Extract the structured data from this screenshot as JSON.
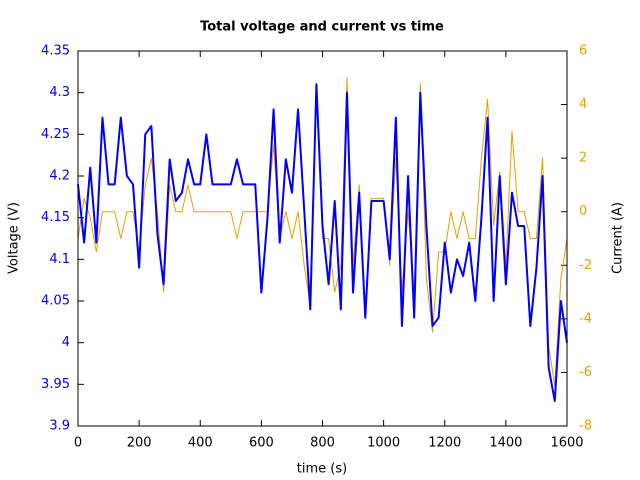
{
  "chart_data": {
    "type": "line",
    "title": "Total voltage and current vs time",
    "xlabel": "time (s)",
    "ylabel": "Voltage (V)",
    "y2label": "Current (A)",
    "x": [
      0,
      20,
      40,
      60,
      80,
      100,
      120,
      140,
      160,
      180,
      200,
      220,
      240,
      260,
      280,
      300,
      320,
      340,
      360,
      380,
      400,
      420,
      440,
      460,
      480,
      500,
      520,
      540,
      560,
      580,
      600,
      620,
      640,
      660,
      680,
      700,
      720,
      740,
      760,
      780,
      800,
      820,
      840,
      860,
      880,
      900,
      920,
      940,
      960,
      980,
      1000,
      1020,
      1040,
      1060,
      1080,
      1100,
      1120,
      1140,
      1160,
      1180,
      1200,
      1220,
      1240,
      1260,
      1280,
      1300,
      1320,
      1340,
      1360,
      1380,
      1400,
      1420,
      1440,
      1460,
      1480,
      1500,
      1520,
      1540,
      1560,
      1580,
      1600
    ],
    "series": [
      {
        "name": "Voltage",
        "color": "#0000ff",
        "axis": "y",
        "values": [
          4.19,
          4.12,
          4.21,
          4.12,
          4.27,
          4.19,
          4.19,
          4.27,
          4.2,
          4.19,
          4.09,
          4.25,
          4.26,
          4.13,
          4.07,
          4.22,
          4.17,
          4.18,
          4.22,
          4.19,
          4.19,
          4.25,
          4.19,
          4.19,
          4.19,
          4.19,
          4.22,
          4.19,
          4.19,
          4.19,
          4.06,
          4.15,
          4.28,
          4.12,
          4.22,
          4.18,
          4.28,
          4.16,
          4.04,
          4.31,
          4.14,
          4.07,
          4.17,
          4.04,
          4.3,
          4.06,
          4.18,
          4.03,
          4.17,
          4.17,
          4.17,
          4.1,
          4.27,
          4.02,
          4.2,
          4.03,
          4.3,
          4.14,
          4.02,
          4.03,
          4.12,
          4.06,
          4.1,
          4.08,
          4.12,
          4.05,
          4.15,
          4.27,
          4.05,
          4.2,
          4.07,
          4.18,
          4.14,
          4.14,
          4.02,
          4.09,
          4.2,
          3.97,
          3.93,
          4.05,
          4.0
        ]
      },
      {
        "name": "Current",
        "color": "#e69f00",
        "axis": "y2",
        "values": [
          -1,
          0.5,
          -0.2,
          -1.5,
          0,
          0,
          0,
          -1,
          0,
          0,
          -1.5,
          1,
          2,
          0,
          -3,
          1,
          0,
          0,
          1,
          0,
          0,
          0,
          0,
          0,
          0,
          0,
          -1,
          0,
          0,
          0,
          0,
          0,
          2.5,
          -1,
          0,
          -1,
          0,
          -2,
          -3.5,
          4.8,
          -1,
          -1,
          -3,
          -2,
          5,
          -2,
          1,
          -4,
          0.5,
          0.5,
          0.5,
          -2,
          2,
          -3,
          0,
          -3,
          4.8,
          -2.5,
          -4.5,
          -1.5,
          -1.5,
          0,
          -1,
          0,
          -1,
          -1,
          2,
          4.2,
          -0.5,
          1.5,
          -2,
          3,
          0,
          0,
          -1,
          -1,
          2,
          -5,
          -6.5,
          -2.5,
          -1
        ]
      }
    ],
    "xlim": [
      0,
      1600
    ],
    "xticks": [
      0,
      200,
      400,
      600,
      800,
      1000,
      1200,
      1400,
      1600
    ],
    "ylim": [
      3.9,
      4.35
    ],
    "yticks": [
      3.9,
      3.95,
      4,
      4.05,
      4.1,
      4.15,
      4.2,
      4.25,
      4.3,
      4.35
    ],
    "y2lim": [
      -8,
      6
    ],
    "y2ticks": [
      -8,
      -6,
      -4,
      -2,
      0,
      2,
      4,
      6
    ],
    "grid": false,
    "legend": false
  }
}
